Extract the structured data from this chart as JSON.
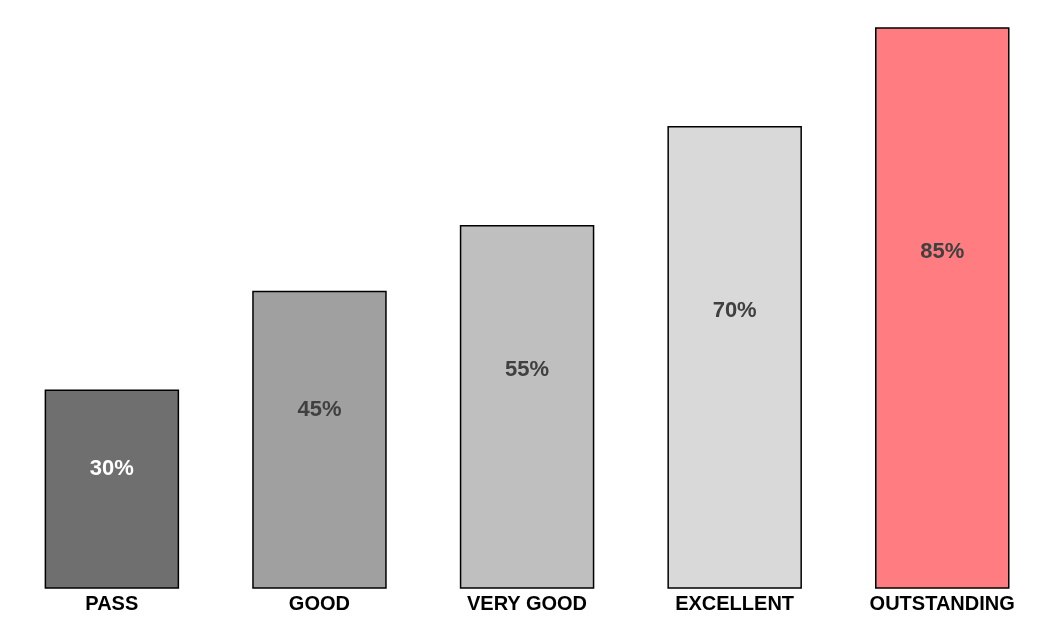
{
  "chart_data": {
    "type": "bar",
    "categories": [
      "PASS",
      "GOOD",
      "VERY GOOD",
      "EXCELLENT",
      "OUTSTANDING"
    ],
    "values": [
      30,
      45,
      55,
      70,
      85
    ],
    "colors": [
      "#6f6f6f",
      "#a0a0a0",
      "#bfbfbf",
      "#d9d9d9",
      "#ff7c80"
    ],
    "value_labels": [
      "30%",
      "45%",
      "55%",
      "70%",
      "85%"
    ]
  }
}
